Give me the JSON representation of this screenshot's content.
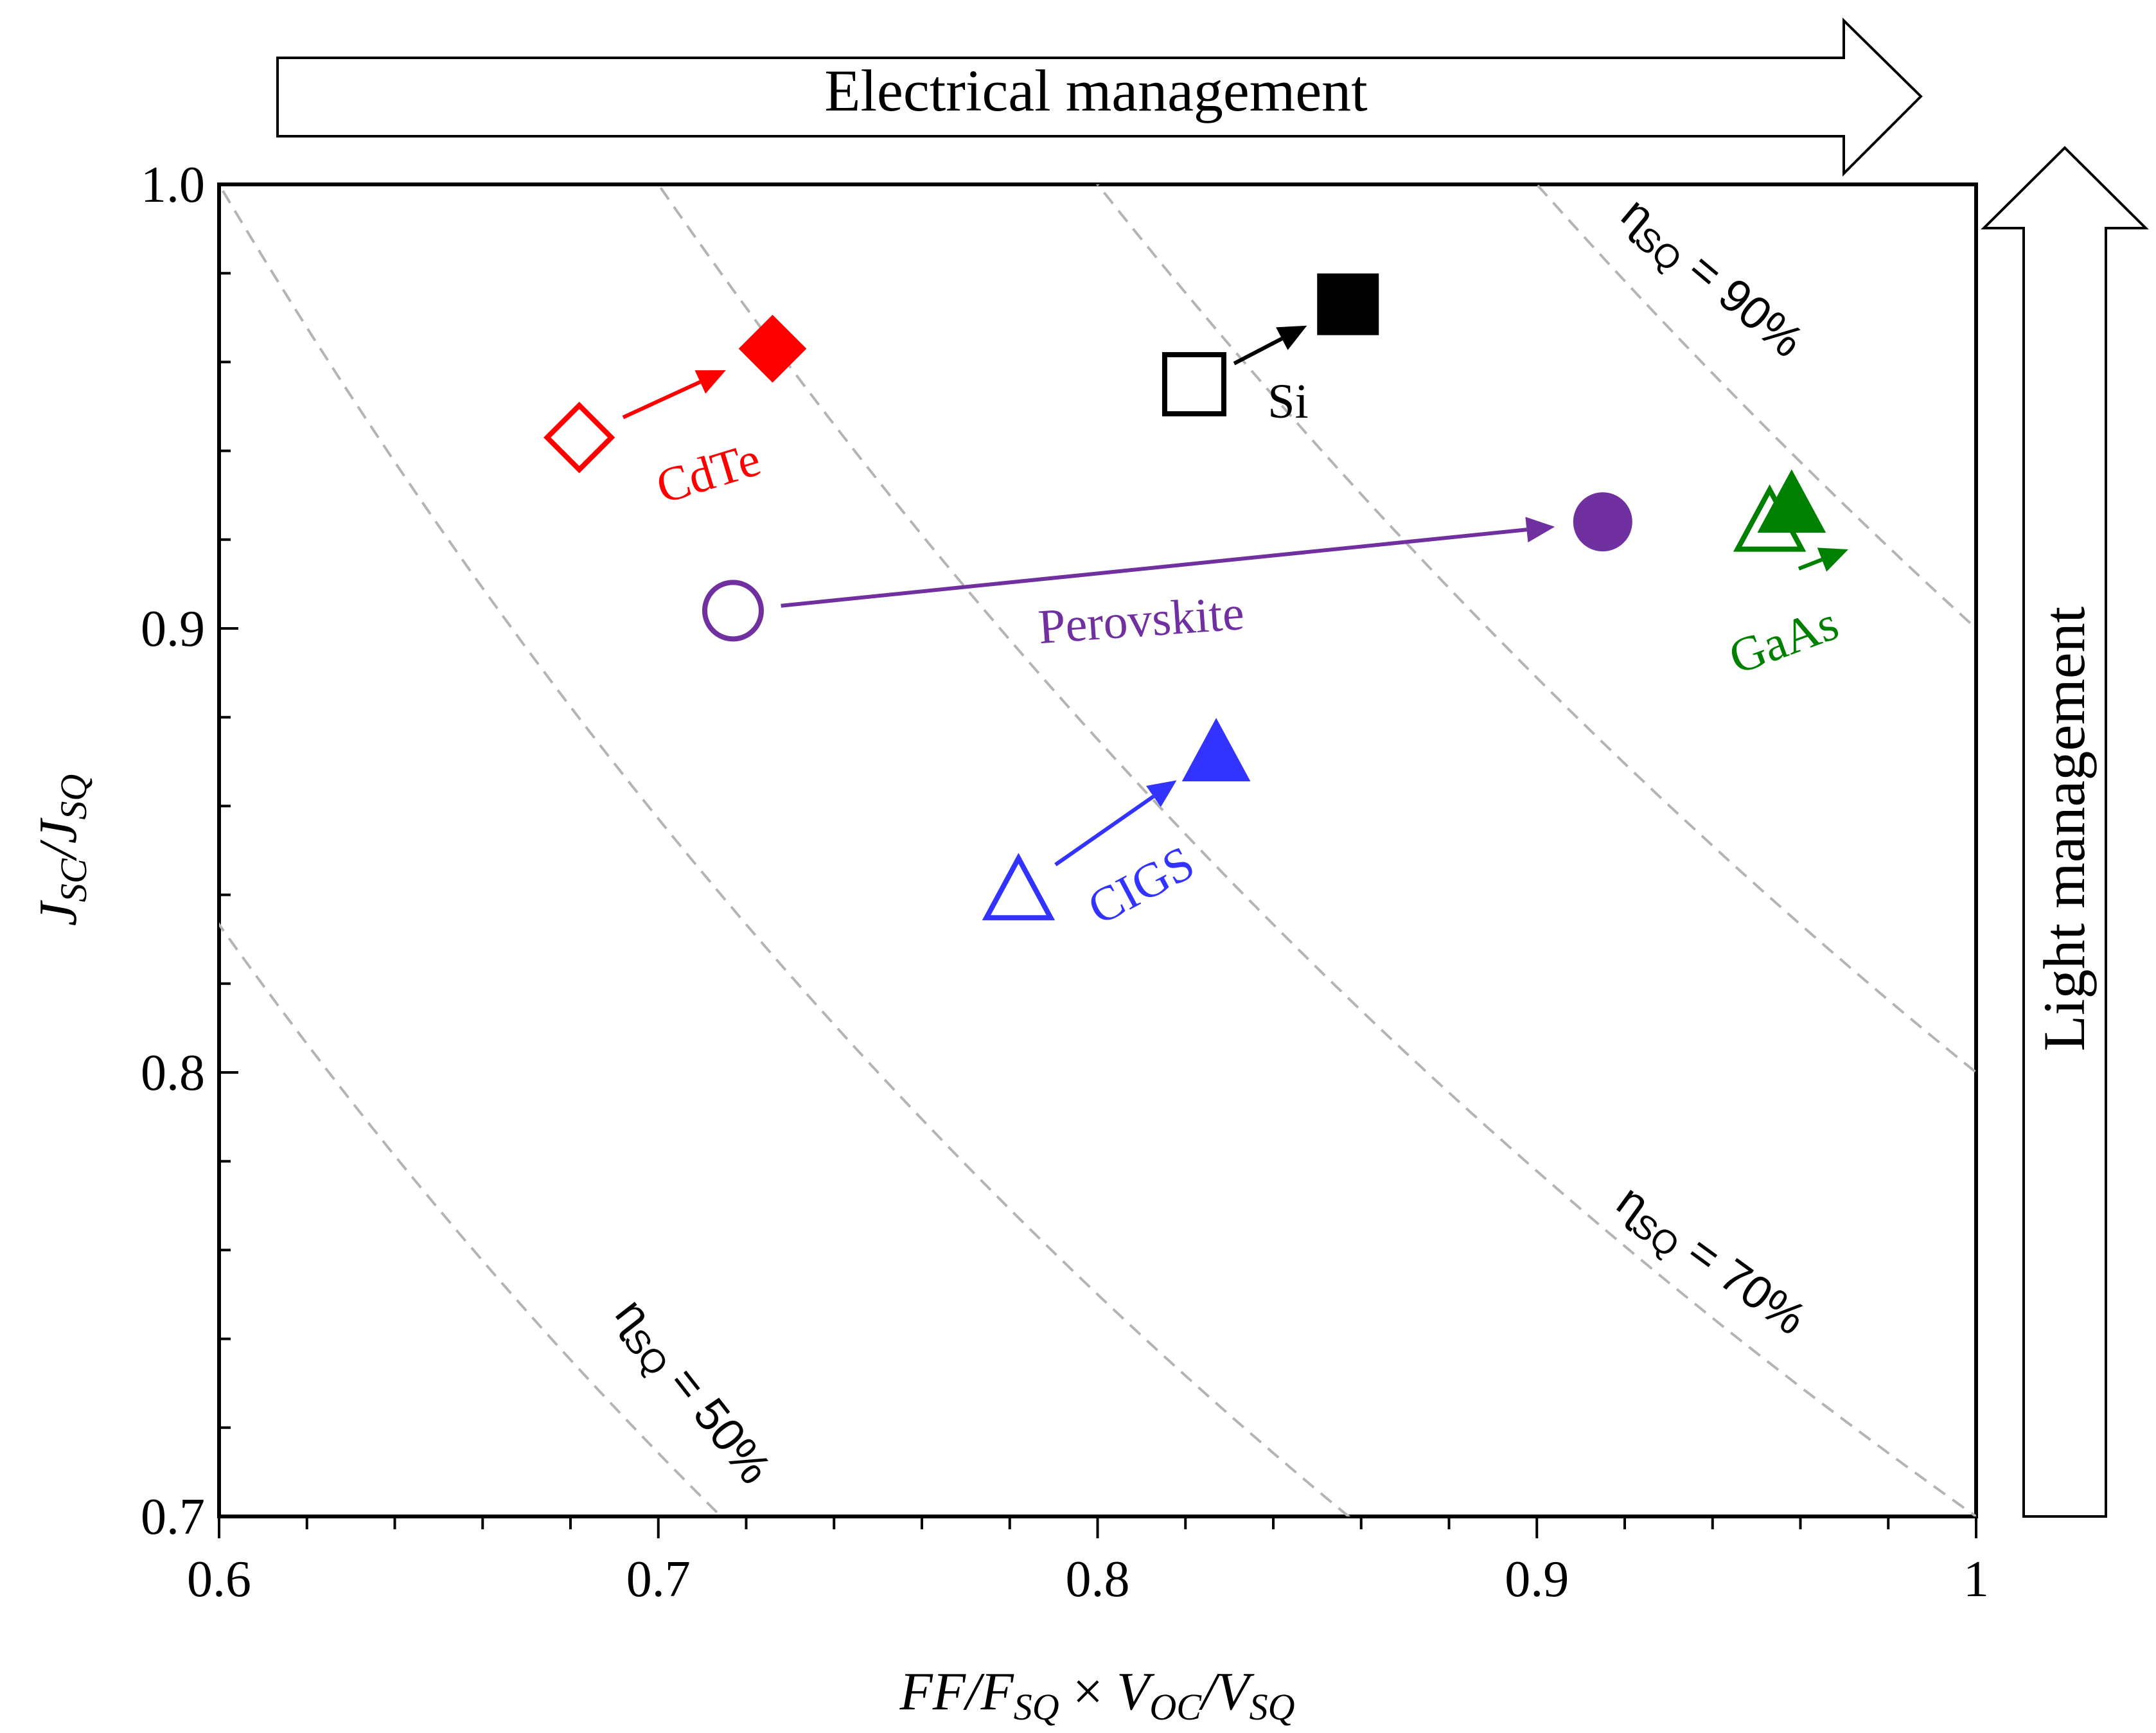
{
  "chart_data": {
    "type": "scatter",
    "title": "",
    "xlabel": {
      "parts": [
        "FF",
        "/",
        "F",
        "SQ",
        " × ",
        "V",
        "OC",
        "/",
        "V",
        "SQ"
      ]
    },
    "ylabel": {
      "parts": [
        "J",
        "SC",
        "/",
        "J",
        "SQ"
      ]
    },
    "xlim": [
      0.6,
      1.0
    ],
    "ylim": [
      0.7,
      1.0
    ],
    "xticks": [
      0.6,
      0.7,
      0.8,
      0.9,
      1.0
    ],
    "xtick_labels": [
      "0.6",
      "0.7",
      "0.8",
      "0.9",
      "1"
    ],
    "yticks": [
      0.7,
      0.8,
      0.9,
      1.0
    ],
    "ytick_labels": [
      "0.7",
      "0.8",
      "0.9",
      "1.0"
    ],
    "x_minor_step": 0.02,
    "y_minor_step": 0.02,
    "grid": false,
    "banners": {
      "horizontal": "Electrical management",
      "vertical": "Light management"
    },
    "contours": [
      {
        "efficiency": 0.5,
        "label": "ɳ",
        "label_sub": "SQ",
        "label_rest": "= 50%",
        "show_label": true
      },
      {
        "efficiency": 0.6,
        "show_label": false
      },
      {
        "efficiency": 0.7,
        "label": "ɳ",
        "label_sub": "SQ",
        "label_rest": "= 70%",
        "show_label": true
      },
      {
        "efficiency": 0.8,
        "show_label": false
      },
      {
        "efficiency": 0.9,
        "label": "ɳ",
        "label_sub": "SQ",
        "label_rest": "= 90%",
        "show_label": true
      }
    ],
    "series": [
      {
        "name": "CdTe",
        "color": "#ff0000",
        "marker": "diamond",
        "from": {
          "x": 0.682,
          "y": 0.943
        },
        "to": {
          "x": 0.726,
          "y": 0.963
        }
      },
      {
        "name": "Si",
        "color": "#000000",
        "marker": "square",
        "from": {
          "x": 0.822,
          "y": 0.955
        },
        "to": {
          "x": 0.857,
          "y": 0.973
        }
      },
      {
        "name": "Perovskite",
        "color": "#7030a0",
        "marker": "circle",
        "from": {
          "x": 0.717,
          "y": 0.904
        },
        "to": {
          "x": 0.915,
          "y": 0.924
        }
      },
      {
        "name": "GaAs",
        "color": "#008000",
        "marker": "triangle",
        "from": {
          "x": 0.953,
          "y": 0.924
        },
        "to": {
          "x": 0.958,
          "y": 0.928
        }
      },
      {
        "name": "CIGS",
        "color": "#3333ff",
        "marker": "triangle",
        "from": {
          "x": 0.782,
          "y": 0.841
        },
        "to": {
          "x": 0.827,
          "y": 0.872
        }
      }
    ]
  }
}
